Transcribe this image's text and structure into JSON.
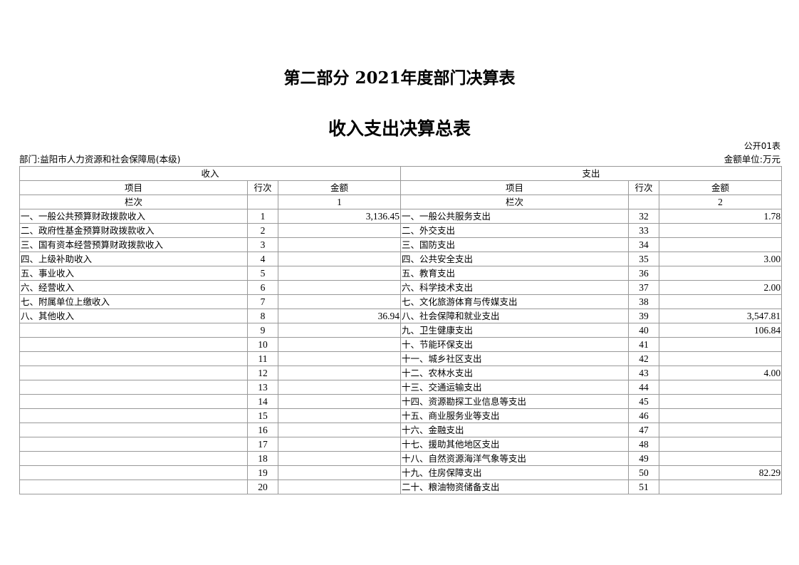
{
  "titles": {
    "main": "第二部分 2021年度部门决算表",
    "sub": "收入支出决算总表"
  },
  "meta": {
    "table_code": "公开01表",
    "department": "部门:益阳市人力资源和社会保障局(本级)",
    "unit": "金额单位:万元"
  },
  "header": {
    "income": "收入",
    "expense": "支出",
    "item": "项目",
    "row_no": "行次",
    "amount": "金额",
    "column_label": "栏次",
    "income_col": "1",
    "expense_col": "2"
  },
  "rows": [
    {
      "in_item": "一、一般公共预算财政拨款收入",
      "in_no": "1",
      "in_amt": "3,136.45",
      "ex_item": "一、一般公共服务支出",
      "ex_no": "32",
      "ex_amt": "1.78"
    },
    {
      "in_item": "二、政府性基金预算财政拨款收入",
      "in_no": "2",
      "in_amt": "",
      "ex_item": "二、外交支出",
      "ex_no": "33",
      "ex_amt": ""
    },
    {
      "in_item": "三、国有资本经营预算财政拨款收入",
      "in_no": "3",
      "in_amt": "",
      "ex_item": "三、国防支出",
      "ex_no": "34",
      "ex_amt": ""
    },
    {
      "in_item": "四、上级补助收入",
      "in_no": "4",
      "in_amt": "",
      "ex_item": "四、公共安全支出",
      "ex_no": "35",
      "ex_amt": "3.00"
    },
    {
      "in_item": "五、事业收入",
      "in_no": "5",
      "in_amt": "",
      "ex_item": "五、教育支出",
      "ex_no": "36",
      "ex_amt": ""
    },
    {
      "in_item": "六、经营收入",
      "in_no": "6",
      "in_amt": "",
      "ex_item": "六、科学技术支出",
      "ex_no": "37",
      "ex_amt": "2.00"
    },
    {
      "in_item": "七、附属单位上缴收入",
      "in_no": "7",
      "in_amt": "",
      "ex_item": "七、文化旅游体育与传媒支出",
      "ex_no": "38",
      "ex_amt": ""
    },
    {
      "in_item": "八、其他收入",
      "in_no": "8",
      "in_amt": "36.94",
      "ex_item": "八、社会保障和就业支出",
      "ex_no": "39",
      "ex_amt": "3,547.81"
    },
    {
      "in_item": "",
      "in_no": "9",
      "in_amt": "",
      "ex_item": "九、卫生健康支出",
      "ex_no": "40",
      "ex_amt": "106.84"
    },
    {
      "in_item": "",
      "in_no": "10",
      "in_amt": "",
      "ex_item": "十、节能环保支出",
      "ex_no": "41",
      "ex_amt": ""
    },
    {
      "in_item": "",
      "in_no": "11",
      "in_amt": "",
      "ex_item": "十一、城乡社区支出",
      "ex_no": "42",
      "ex_amt": ""
    },
    {
      "in_item": "",
      "in_no": "12",
      "in_amt": "",
      "ex_item": "十二、农林水支出",
      "ex_no": "43",
      "ex_amt": "4.00"
    },
    {
      "in_item": "",
      "in_no": "13",
      "in_amt": "",
      "ex_item": "十三、交通运输支出",
      "ex_no": "44",
      "ex_amt": ""
    },
    {
      "in_item": "",
      "in_no": "14",
      "in_amt": "",
      "ex_item": "十四、资源勘探工业信息等支出",
      "ex_no": "45",
      "ex_amt": ""
    },
    {
      "in_item": "",
      "in_no": "15",
      "in_amt": "",
      "ex_item": "十五、商业服务业等支出",
      "ex_no": "46",
      "ex_amt": ""
    },
    {
      "in_item": "",
      "in_no": "16",
      "in_amt": "",
      "ex_item": "十六、金融支出",
      "ex_no": "47",
      "ex_amt": ""
    },
    {
      "in_item": "",
      "in_no": "17",
      "in_amt": "",
      "ex_item": "十七、援助其他地区支出",
      "ex_no": "48",
      "ex_amt": ""
    },
    {
      "in_item": "",
      "in_no": "18",
      "in_amt": "",
      "ex_item": "十八、自然资源海洋气象等支出",
      "ex_no": "49",
      "ex_amt": ""
    },
    {
      "in_item": "",
      "in_no": "19",
      "in_amt": "",
      "ex_item": "十九、住房保障支出",
      "ex_no": "50",
      "ex_amt": "82.29"
    },
    {
      "in_item": "",
      "in_no": "20",
      "in_amt": "",
      "ex_item": "二十、粮油物资储备支出",
      "ex_no": "51",
      "ex_amt": ""
    }
  ]
}
